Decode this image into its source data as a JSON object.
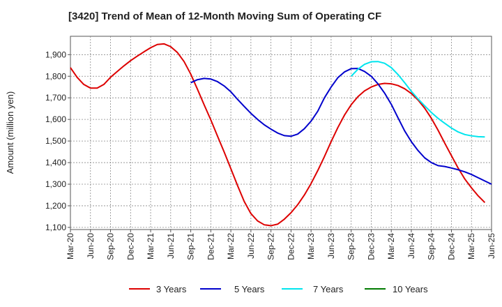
{
  "chart_data": {
    "type": "line",
    "title": "[3420]  Trend of Mean of 12-Month Moving Sum of Operating CF",
    "xlabel": "",
    "ylabel": "Amount (million yen)",
    "ylim": [
      1090,
      1985
    ],
    "yticks": [
      1100,
      1200,
      1300,
      1400,
      1500,
      1600,
      1700,
      1800,
      1900
    ],
    "ytick_labels": [
      "1,100",
      "1,200",
      "1,300",
      "1,400",
      "1,500",
      "1,600",
      "1,700",
      "1,800",
      "1,900"
    ],
    "x_tick_labels": [
      "Mar-20",
      "Jun-20",
      "Sep-20",
      "Dec-20",
      "Mar-21",
      "Jun-21",
      "Sep-21",
      "Dec-21",
      "Mar-22",
      "Jun-22",
      "Sep-22",
      "Dec-22",
      "Mar-23",
      "Jun-23",
      "Sep-23",
      "Dec-23",
      "Mar-24",
      "Jun-24",
      "Sep-24",
      "Dec-24",
      "Mar-25",
      "Jun-25"
    ],
    "x_start": "Mar-20",
    "x_months": 63,
    "grid": true,
    "legend_position": "bottom",
    "series": [
      {
        "name": "3 Years",
        "color": "#dd0000",
        "start_index": 0,
        "values": [
          1840,
          1795,
          1762,
          1745,
          1745,
          1762,
          1795,
          1822,
          1848,
          1872,
          1893,
          1913,
          1932,
          1947,
          1950,
          1937,
          1910,
          1868,
          1810,
          1740,
          1668,
          1598,
          1523,
          1449,
          1372,
          1294,
          1220,
          1164,
          1130,
          1112,
          1108,
          1115,
          1138,
          1168,
          1205,
          1250,
          1303,
          1363,
          1428,
          1497,
          1562,
          1620,
          1668,
          1705,
          1732,
          1750,
          1762,
          1767,
          1765,
          1757,
          1742,
          1720,
          1690,
          1652,
          1605,
          1550,
          1490,
          1432,
          1375,
          1324,
          1283,
          1246,
          1215
        ]
      },
      {
        "name": "5 Years",
        "color": "#0000cc",
        "start_index": 18,
        "values": [
          1770,
          1784,
          1790,
          1787,
          1775,
          1755,
          1728,
          1693,
          1660,
          1628,
          1600,
          1575,
          1555,
          1537,
          1525,
          1522,
          1532,
          1557,
          1592,
          1638,
          1700,
          1750,
          1793,
          1820,
          1835,
          1836,
          1822,
          1800,
          1765,
          1722,
          1670,
          1608,
          1547,
          1497,
          1456,
          1422,
          1400,
          1386,
          1382,
          1375,
          1367,
          1357,
          1345,
          1330,
          1315,
          1300
        ]
      },
      {
        "name": "7 Years",
        "color": "#00e5ee",
        "start_index": 42,
        "values": [
          1800,
          1832,
          1855,
          1867,
          1868,
          1860,
          1840,
          1808,
          1770,
          1730,
          1695,
          1663,
          1632,
          1605,
          1582,
          1560,
          1542,
          1530,
          1524,
          1520,
          1519
        ]
      },
      {
        "name": "10 Years",
        "color": "#007a00",
        "start_index": 0,
        "values": []
      }
    ]
  }
}
